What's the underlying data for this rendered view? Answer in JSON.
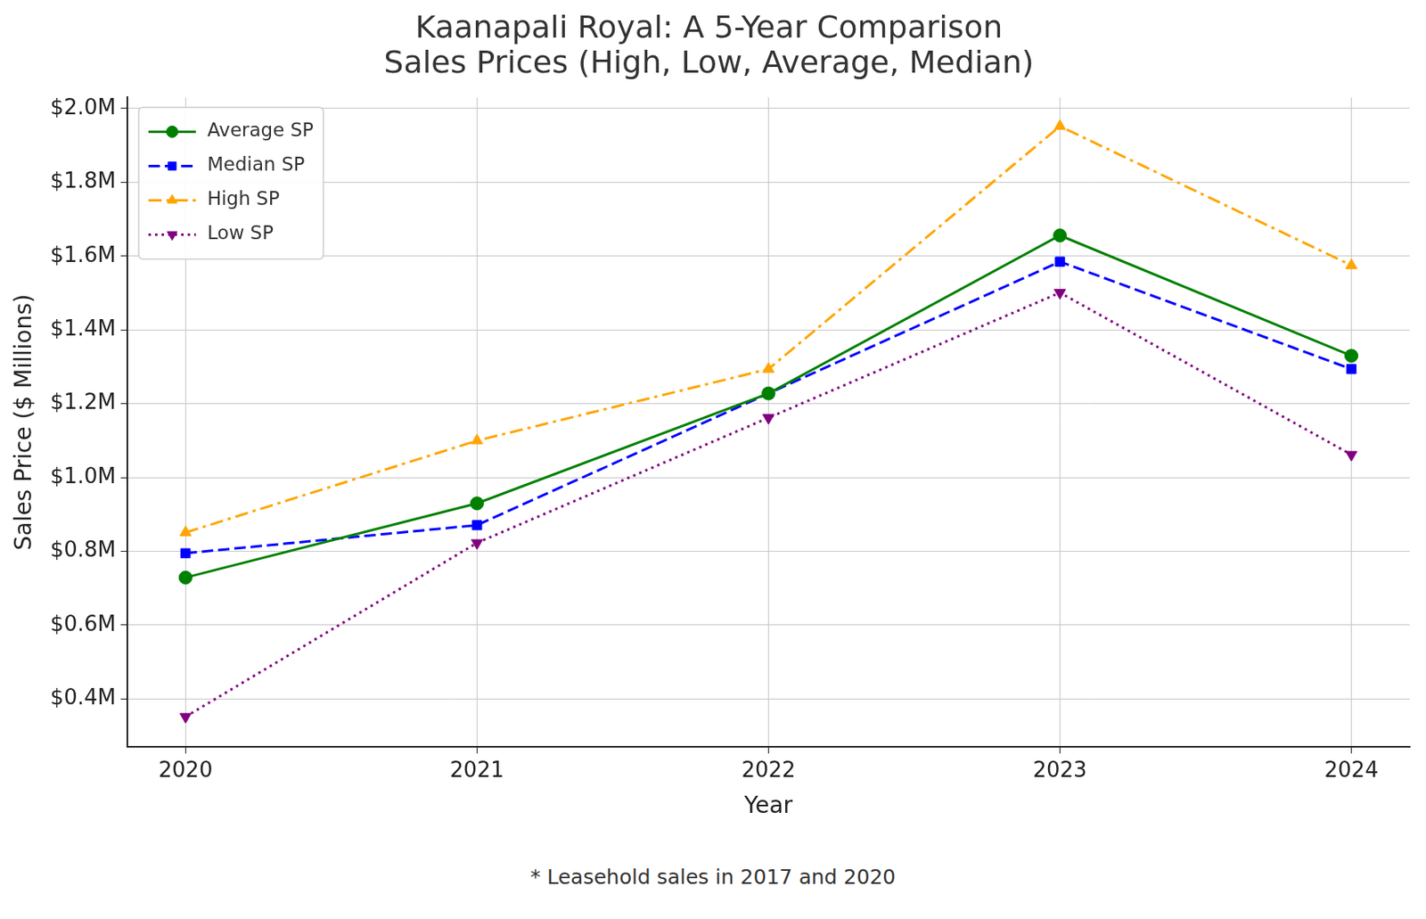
{
  "chart_data": {
    "type": "line",
    "title": "Kaanapali Royal: A 5-Year Comparison\nSales Prices (High, Low, Average, Median)",
    "x_label": "Year",
    "y_label": "Sales Price ($ Millions)",
    "annotations": [
      "* Leasehold sales in 2017 and 2020"
    ],
    "x": [
      2020,
      2021,
      2022,
      2023,
      2024
    ],
    "xlim": [
      2019.8,
      2024.2
    ],
    "xticks": [
      2020,
      2021,
      2022,
      2023,
      2024
    ],
    "ylim": [
      0.27,
      2.03
    ],
    "yticks": [
      {
        "value": 0.4,
        "label": "$0.4M"
      },
      {
        "value": 0.6,
        "label": "$0.6M"
      },
      {
        "value": 0.8,
        "label": "$0.8M"
      },
      {
        "value": 1.0,
        "label": "$1.0M"
      },
      {
        "value": 1.2,
        "label": "$1.2M"
      },
      {
        "value": 1.4,
        "label": "$1.4M"
      },
      {
        "value": 1.6,
        "label": "$1.6M"
      },
      {
        "value": 1.8,
        "label": "$1.8M"
      },
      {
        "value": 2.0,
        "label": "$2.0M"
      }
    ],
    "grid": true,
    "legend": "upper left",
    "series": [
      {
        "name": "Average SP",
        "color": "#008000",
        "marker": "circle",
        "line_style": "solid",
        "values": [
          0.729,
          0.93,
          1.228,
          1.656,
          1.33
        ]
      },
      {
        "name": "Median SP",
        "color": "#0000ff",
        "marker": "square",
        "line_style": "dashed",
        "values": [
          0.795,
          0.871,
          1.228,
          1.585,
          1.294
        ]
      },
      {
        "name": "High SP",
        "color": "#ffa500",
        "marker": "triangle",
        "line_style": "dashdot",
        "values": [
          0.851,
          1.1,
          1.294,
          1.952,
          1.575
        ]
      },
      {
        "name": "Low SP",
        "color": "#800080",
        "marker": "triangle_down",
        "line_style": "dotted",
        "values": [
          0.352,
          0.823,
          1.162,
          1.501,
          1.062
        ]
      }
    ]
  }
}
